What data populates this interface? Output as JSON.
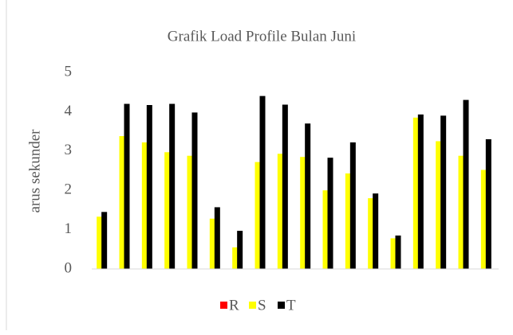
{
  "chart_data": {
    "type": "bar",
    "title": "Grafik Load Profile Bulan Juni",
    "ylabel": "arus sekunder",
    "categories": [
      null,
      null,
      null,
      null,
      null,
      null,
      null,
      null,
      null,
      null,
      null,
      null,
      null,
      null,
      null,
      null,
      null,
      null
    ],
    "series": [
      {
        "name": "R",
        "color": "#ff0000",
        "values": [
          0,
          0,
          0,
          0,
          0,
          0,
          0,
          0,
          0,
          0,
          0,
          0,
          0,
          0,
          0,
          0,
          0,
          0
        ]
      },
      {
        "name": "S",
        "color": "#ffff00",
        "values": [
          1.33,
          3.38,
          3.22,
          2.97,
          2.88,
          1.28,
          0.55,
          2.72,
          2.93,
          2.85,
          2.0,
          2.43,
          1.8,
          0.78,
          3.85,
          3.25,
          2.88,
          2.52
        ]
      },
      {
        "name": "T",
        "color": "#000000",
        "values": [
          1.45,
          4.2,
          4.17,
          4.2,
          3.98,
          1.57,
          0.97,
          4.4,
          4.18,
          3.7,
          2.83,
          3.22,
          1.92,
          0.85,
          3.93,
          3.9,
          4.3,
          3.3
        ]
      }
    ],
    "ylim": [
      0,
      5
    ],
    "yticks": [
      0,
      1,
      2,
      3,
      4,
      5
    ],
    "grid": false,
    "legend": "bottom"
  }
}
